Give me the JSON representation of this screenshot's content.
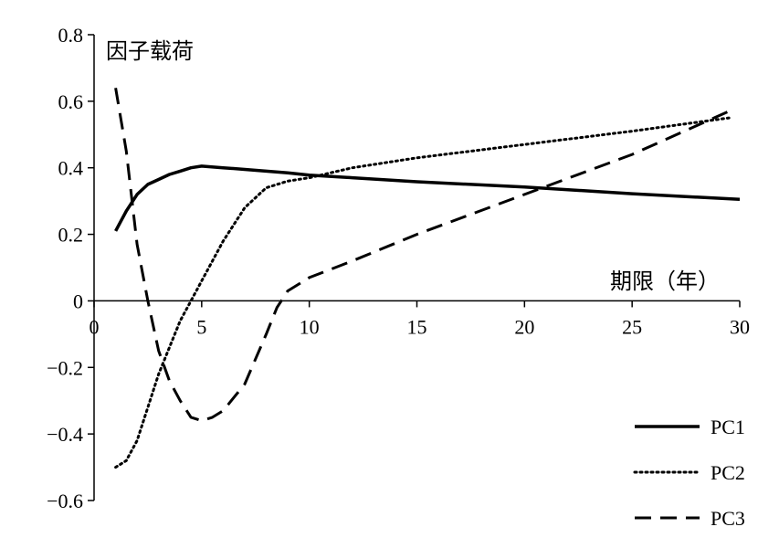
{
  "chart_data": {
    "type": "line",
    "ylabel": "因子载荷",
    "xlabel": "期限（年）",
    "xlim": [
      0,
      30
    ],
    "ylim": [
      -0.6,
      0.8
    ],
    "xticks": [
      "0",
      "5",
      "10",
      "15",
      "20",
      "25",
      "30"
    ],
    "yticks": [
      "0.8",
      "0.6",
      "0.4",
      "0.2",
      "0",
      "−0.2",
      "−0.4",
      "−0.6"
    ],
    "grid": false,
    "legend_position": "bottom-right",
    "series": [
      {
        "name": "PC1",
        "style": "solid",
        "x": [
          1,
          1.5,
          2,
          2.5,
          3,
          3.5,
          4,
          4.5,
          5,
          6,
          7,
          8,
          9,
          10,
          12,
          15,
          20,
          25,
          30
        ],
        "y": [
          0.21,
          0.27,
          0.32,
          0.35,
          0.365,
          0.38,
          0.39,
          0.4,
          0.405,
          0.4,
          0.395,
          0.39,
          0.385,
          0.378,
          0.37,
          0.358,
          0.342,
          0.322,
          0.305
        ]
      },
      {
        "name": "PC2",
        "style": "dotted",
        "x": [
          1,
          1.5,
          2,
          2.5,
          3,
          3.5,
          4,
          4.5,
          5,
          6,
          7,
          8,
          9,
          10,
          12,
          15,
          20,
          25,
          29.5
        ],
        "y": [
          -0.5,
          -0.48,
          -0.42,
          -0.32,
          -0.22,
          -0.14,
          -0.06,
          0.0,
          0.06,
          0.18,
          0.28,
          0.34,
          0.36,
          0.37,
          0.4,
          0.43,
          0.47,
          0.51,
          0.55
        ]
      },
      {
        "name": "PC3",
        "style": "dashed",
        "x": [
          1,
          1.5,
          2,
          2.5,
          3,
          3.5,
          4,
          4.5,
          5,
          5.5,
          6,
          7,
          8,
          8.5,
          9,
          10,
          12,
          15,
          20,
          25,
          29.5
        ],
        "y": [
          0.64,
          0.45,
          0.17,
          0.0,
          -0.15,
          -0.24,
          -0.3,
          -0.35,
          -0.36,
          -0.35,
          -0.33,
          -0.25,
          -0.1,
          -0.02,
          0.03,
          0.07,
          0.12,
          0.2,
          0.32,
          0.44,
          0.57
        ]
      }
    ]
  }
}
